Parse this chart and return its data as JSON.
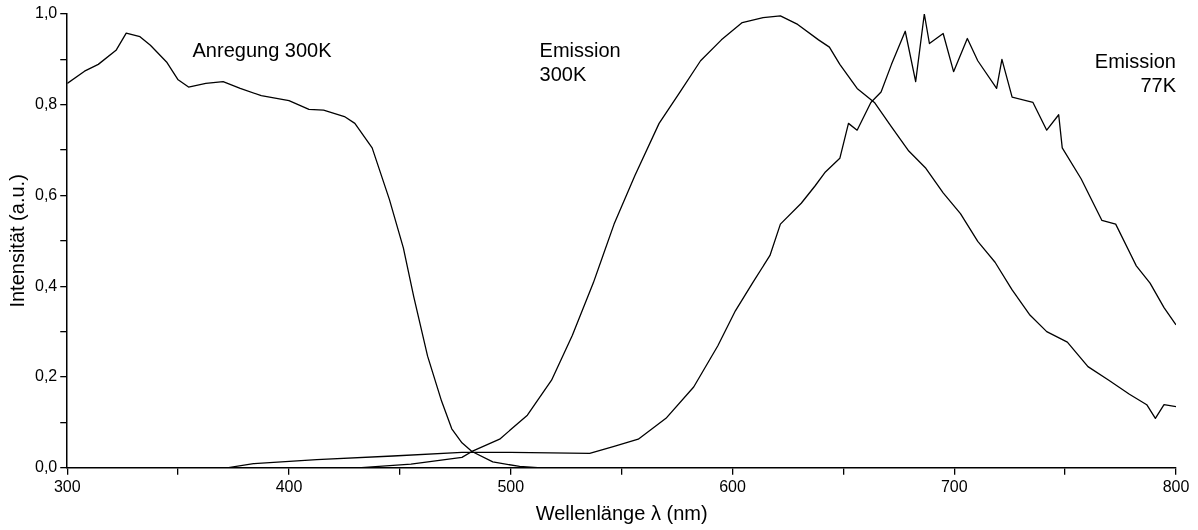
{
  "chart_data": {
    "type": "line",
    "xlabel": "Wellenlänge λ (nm)",
    "ylabel": "Intensität (a.u.)",
    "xlim": [
      300,
      800
    ],
    "ylim": [
      0,
      1.0
    ],
    "xticks": [
      300,
      {
        "value": 350,
        "label": null
      },
      400,
      {
        "value": 450,
        "label": null
      },
      500,
      {
        "value": 550,
        "label": null
      },
      600,
      {
        "value": 650,
        "label": null
      },
      700,
      {
        "value": 750,
        "label": null
      },
      800
    ],
    "yticks": [
      {
        "value": 0,
        "label": "0,0"
      },
      {
        "value": 0.1,
        "label": null
      },
      {
        "value": 0.2,
        "label": "0,2"
      },
      {
        "value": 0.3,
        "label": null
      },
      {
        "value": 0.4,
        "label": "0,4"
      },
      {
        "value": 0.5,
        "label": null
      },
      {
        "value": 0.6,
        "label": "0,6"
      },
      {
        "value": 0.7,
        "label": null
      },
      {
        "value": 0.8,
        "label": "0,8"
      },
      {
        "value": 0.9,
        "label": null
      },
      {
        "value": 1.0,
        "label": "1,0"
      }
    ],
    "grid": false,
    "legend": false,
    "marker": "none",
    "line_style": "solid",
    "series": [
      {
        "name": "Anregung 300K",
        "color": "#000000",
        "x": [
          300,
          307.8,
          314,
          322,
          326.6,
          332.8,
          337.5,
          345,
          350,
          354.7,
          362.5,
          370.3,
          378,
          387.5,
          400,
          409,
          415.6,
          425,
          429.7,
          437.5,
          445.3,
          451.6,
          456.3,
          462.5,
          468.8,
          473.4,
          478,
          482.5,
          491.9,
          504,
          513.8,
          520
        ],
        "values": [
          0.847,
          0.874,
          0.889,
          0.92,
          0.958,
          0.95,
          0.931,
          0.893,
          0.855,
          0.839,
          0.847,
          0.851,
          0.836,
          0.82,
          0.809,
          0.79,
          0.788,
          0.774,
          0.759,
          0.705,
          0.591,
          0.484,
          0.376,
          0.246,
          0.147,
          0.086,
          0.055,
          0.036,
          0.013,
          0.003,
          0,
          0
        ]
      },
      {
        "name": "Emission 300K",
        "color": "#000000",
        "x": [
          431,
          455,
          478,
          482.5,
          495,
          507.5,
          518.4,
          527.8,
          537.2,
          546.6,
          556,
          566.9,
          576.3,
          585.6,
          595,
          604.4,
          613.8,
          621.6,
          629.4,
          638.8,
          643.7,
          648.4,
          656.2,
          664,
          671.7,
          679.5,
          687.2,
          695,
          702.8,
          710.6,
          718.4,
          726.1,
          733.9,
          741.7,
          751,
          760.3,
          769.7,
          779,
          786.8,
          790.7,
          794.6,
          800
        ],
        "values": [
          0,
          0.008,
          0.023,
          0.036,
          0.063,
          0.116,
          0.193,
          0.292,
          0.407,
          0.537,
          0.644,
          0.759,
          0.828,
          0.897,
          0.943,
          0.981,
          0.992,
          0.996,
          0.977,
          0.943,
          0.927,
          0.889,
          0.836,
          0.805,
          0.751,
          0.698,
          0.66,
          0.606,
          0.56,
          0.499,
          0.453,
          0.392,
          0.338,
          0.3,
          0.277,
          0.223,
          0.193,
          0.162,
          0.139,
          0.109,
          0.139,
          0.135
        ]
      },
      {
        "name": "Emission 77K",
        "color": "#000000",
        "x": [
          372,
          384,
          412.5,
          446.9,
          478,
          500,
          535.6,
          546.6,
          557.5,
          570,
          582.5,
          593.4,
          601.3,
          609,
          616.9,
          621.6,
          631,
          637.2,
          641.9,
          648.4,
          652.3,
          656.2,
          662.4,
          667,
          671.7,
          677.9,
          682.6,
          686.5,
          688.8,
          695,
          699.7,
          705.9,
          710.6,
          719.1,
          721.5,
          726.1,
          735.5,
          741.7,
          747.1,
          748.7,
          757.2,
          766.6,
          772.8,
          782.1,
          788.3,
          794.6,
          800
        ],
        "values": [
          0,
          0.009,
          0.018,
          0.026,
          0.034,
          0.034,
          0.032,
          0.047,
          0.063,
          0.109,
          0.178,
          0.269,
          0.346,
          0.407,
          0.468,
          0.537,
          0.583,
          0.621,
          0.652,
          0.682,
          0.759,
          0.744,
          0.805,
          0.828,
          0.889,
          0.962,
          0.851,
          1.0,
          0.935,
          0.957,
          0.873,
          0.946,
          0.897,
          0.836,
          0.9,
          0.817,
          0.805,
          0.744,
          0.778,
          0.705,
          0.637,
          0.545,
          0.537,
          0.445,
          0.407,
          0.353,
          0.315
        ]
      }
    ]
  }
}
